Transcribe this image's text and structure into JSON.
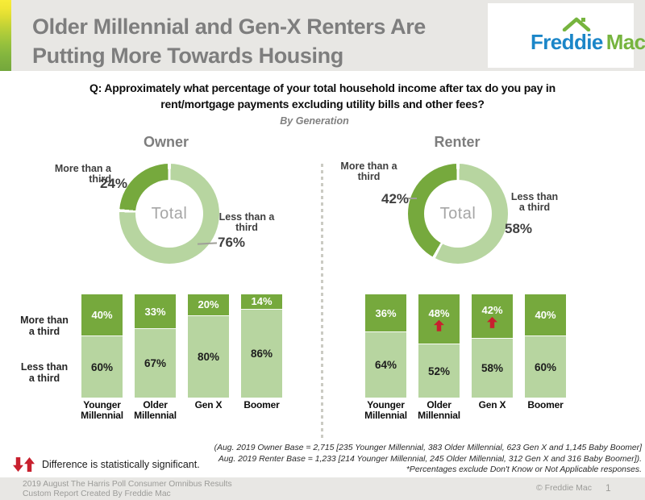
{
  "header": {
    "title": "Older Millennial and Gen-X Renters Are\nPutting More Towards Housing",
    "logo": {
      "word1": "Freddie",
      "word2": "Mac"
    }
  },
  "question": "Q: Approximately what percentage of your total household income after tax do you pay in\nrent/mortgage payments excluding utility bills and other fees?",
  "subtitle": "By Generation",
  "colors": {
    "more_than_third": "#76a93d",
    "less_than_third": "#b7d5a0",
    "significant_red": "#c8202e",
    "freddie_blue": "#1b86c8",
    "freddie_green": "#76b43e"
  },
  "chart_data": [
    {
      "type": "pie",
      "group": "Owner",
      "title": "Owner",
      "center_label": "Total",
      "slices": [
        {
          "label": "More than a third",
          "value": 24
        },
        {
          "label": "Less than a third",
          "value": 76
        }
      ],
      "labels": {
        "more_text": "More than a\nthird",
        "more_pct": "24%",
        "less_text": "Less than a\nthird",
        "less_pct": "76%"
      }
    },
    {
      "type": "pie",
      "group": "Renter",
      "title": "Renter",
      "center_label": "Total",
      "slices": [
        {
          "label": "More than a third",
          "value": 42
        },
        {
          "label": "Less than a third",
          "value": 58
        }
      ],
      "labels": {
        "more_text": "More than a\nthird",
        "more_pct": "42%",
        "less_text": "Less than\na third",
        "less_pct": "58%"
      }
    },
    {
      "type": "bar",
      "group": "Owner",
      "stacked": true,
      "ylim": [
        0,
        100
      ],
      "categories": [
        "Younger\nMillennial",
        "Older\nMillennial",
        "Gen X",
        "Boomer"
      ],
      "series": [
        {
          "name": "More than a third",
          "values": [
            40,
            33,
            20,
            14
          ]
        },
        {
          "name": "Less than a third",
          "values": [
            60,
            67,
            80,
            86
          ]
        }
      ],
      "significant_flags": [
        false,
        false,
        false,
        false
      ],
      "row_labels": [
        "More than\na third",
        "Less than\na third"
      ]
    },
    {
      "type": "bar",
      "group": "Renter",
      "stacked": true,
      "ylim": [
        0,
        100
      ],
      "categories": [
        "Younger\nMillennial",
        "Older\nMillennial",
        "Gen X",
        "Boomer"
      ],
      "series": [
        {
          "name": "More than a third",
          "values": [
            36,
            48,
            42,
            40
          ]
        },
        {
          "name": "Less than a third",
          "values": [
            64,
            52,
            58,
            60
          ]
        }
      ],
      "significant_flags": [
        false,
        true,
        true,
        false
      ]
    }
  ],
  "legend": {
    "text": "Difference is statistically significant."
  },
  "footnote": "(Aug. 2019 Owner Base = 2,715 [235 Younger Millennial, 383 Older Millennial, 623 Gen X and 1,145 Baby Boomer]\nAug. 2019 Renter Base = 1,233 [214 Younger Millennial, 245 Older Millennial, 312 Gen X and 316 Baby Boomer]).\n*Percentages exclude Don't Know or Not Applicable responses.",
  "footer": {
    "left": "2019 August The Harris Poll Consumer Omnibus Results\nCustom Report Created By Freddie Mac",
    "copyright": "©  Freddie Mac",
    "page": "1"
  }
}
